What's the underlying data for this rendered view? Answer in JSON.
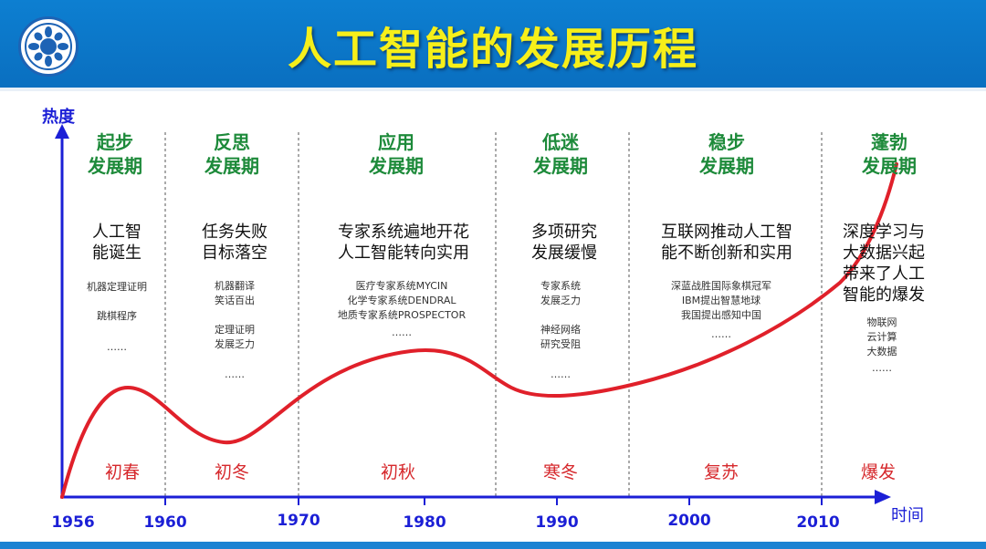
{
  "title": "人工智能的发展历程",
  "axis": {
    "y_label": "热度",
    "x_label": "时间",
    "ticks": [
      "1956",
      "1960",
      "1970",
      "1980",
      "1990",
      "2000",
      "2010"
    ]
  },
  "periods": [
    {
      "name_line1": "起步",
      "name_line2": "发展期",
      "headline": [
        "人工智",
        "能诞生"
      ],
      "details": [
        "机器定理证明",
        "跳棋程序"
      ],
      "ellipsis": "……",
      "season": "初春"
    },
    {
      "name_line1": "反思",
      "name_line2": "发展期",
      "headline": [
        "任务失败",
        "目标落空"
      ],
      "details": [
        "机器翻译",
        "笑话百出",
        "定理证明",
        "发展乏力"
      ],
      "ellipsis": "……",
      "season": "初冬"
    },
    {
      "name_line1": "应用",
      "name_line2": "发展期",
      "headline": [
        "专家系统遍地开花",
        "人工智能转向实用"
      ],
      "details": [
        "医疗专家系统MYCIN",
        "化学专家系统DENDRAL",
        "地质专家系统PROSPECTOR"
      ],
      "ellipsis": "……",
      "season": "初秋"
    },
    {
      "name_line1": "低迷",
      "name_line2": "发展期",
      "headline": [
        "多项研究",
        "发展缓慢"
      ],
      "details": [
        "专家系统",
        "发展乏力",
        "神经网络",
        "研究受阻"
      ],
      "ellipsis": "……",
      "season": "寒冬"
    },
    {
      "name_line1": "稳步",
      "name_line2": "发展期",
      "headline": [
        "互联网推动人工智",
        "能不断创新和实用"
      ],
      "details": [
        "深蓝战胜国际象棋冠军",
        "IBM提出智慧地球",
        "我国提出感知中国"
      ],
      "ellipsis": "……",
      "season": "复苏"
    },
    {
      "name_line1": "蓬勃",
      "name_line2": "发展期",
      "headline": [
        "深度学习与",
        "大数据兴起",
        "带来了人工",
        "智能的爆发"
      ],
      "details": [
        "物联网",
        "云计算",
        "大数据"
      ],
      "ellipsis": "……",
      "season": "爆发"
    }
  ],
  "colors": {
    "header": "#0d7fd1",
    "title": "#f6ef1a",
    "period_name": "#1d8a3a",
    "season": "#d6282c",
    "curve": "#e0202a",
    "axis": "#1b1fd6"
  }
}
